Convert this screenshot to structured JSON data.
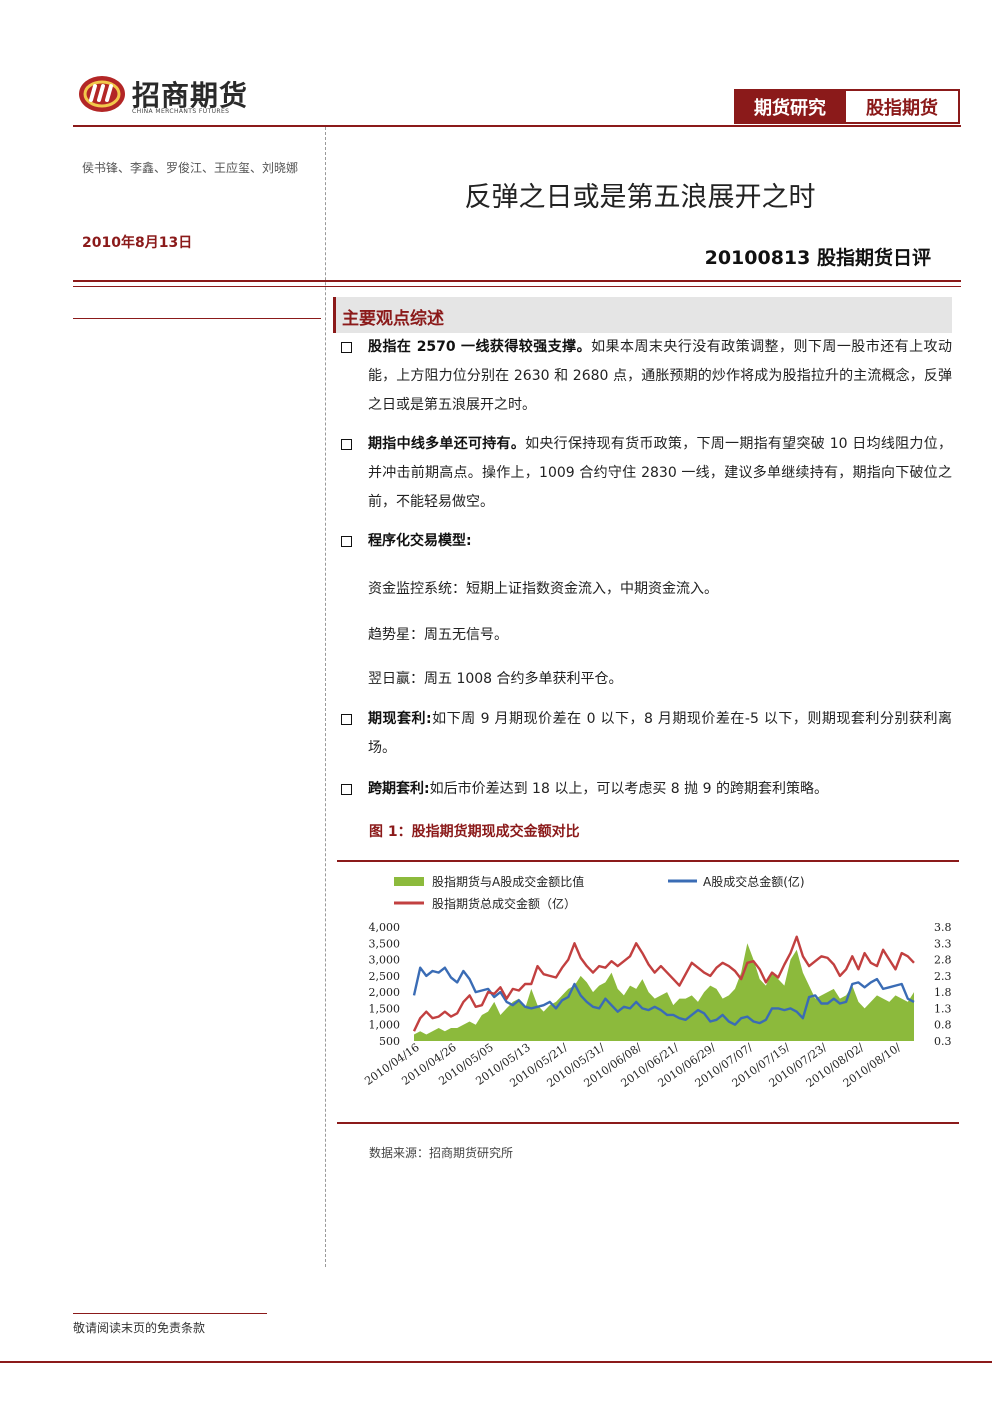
{
  "header": {
    "logo_text": "招商期货",
    "logo_en": "CHINA MERCHANTS FUTURES",
    "tag_primary": "期货研究",
    "tag_secondary": "股指期货"
  },
  "meta": {
    "authors": "侯书锋、李鑫、罗俊江、王应玺、刘晓娜",
    "date": "2010年8月13日"
  },
  "title": "反弹之日或是第五浪展开之时",
  "subtitle": "20100813 股指期货日评",
  "section_title": "主要观点综述",
  "points": [
    {
      "lead": "股指在 2570 一线获得较强支撑。",
      "text": "如果本周末央行没有政策调整，则下周一股市还有上攻动能，上方阻力位分别在 2630 和 2680 点，通胀预期的炒作将成为股指拉升的主流概念，反弹之日或是第五浪展开之时。"
    },
    {
      "lead": "期指中线多单还可持有。",
      "text": "如央行保持现有货币政策，下周一期指有望突破 10 日均线阻力位，并冲击前期高点。操作上，1009 合约守住 2830 一线，建议多单继续持有，期指向下破位之前，不能轻易做空。"
    },
    {
      "lead": "程序化交易模型:",
      "text": ""
    },
    {
      "lead": "期现套利:",
      "text": "如下周 9 月期现价差在 0 以下，8 月期现价差在-5 以下，则期现套利分别获利离场。"
    },
    {
      "lead": "跨期套利:",
      "text": "如后市价差达到 18 以上，可以考虑买 8 抛 9 的跨期套利策略。"
    }
  ],
  "models": [
    "资金监控系统：短期上证指数资金流入，中期资金流入。",
    "趋势星：周五无信号。",
    "翌日赢：周五 1008 合约多单获利平仓。"
  ],
  "figure_title": "图 1：股指期货期现成交金额对比",
  "source": "数据来源：招商期货研究所",
  "footer": "敬请阅读末页的免责条款",
  "colors": {
    "brand": "#8b1a1a",
    "ratio": "#8cba3c",
    "a_share": "#3a6cb5",
    "futures": "#c24040"
  },
  "chart_data": {
    "type": "line",
    "legend": [
      {
        "key": "ratio",
        "name": "股指期货与A股成交金额比值",
        "kind": "area"
      },
      {
        "key": "a_share",
        "name": "A股成交总金额(亿)",
        "kind": "line"
      },
      {
        "key": "futures",
        "name": "股指期货总成交金额（亿）",
        "kind": "line"
      }
    ],
    "x": [
      "2010/04/16",
      "2010/04/19",
      "2010/04/20",
      "2010/04/21",
      "2010/04/22",
      "2010/04/23",
      "2010/04/26",
      "2010/04/27",
      "2010/04/28",
      "2010/04/29",
      "2010/04/30",
      "2010/05/04",
      "2010/05/05",
      "2010/05/06",
      "2010/05/07",
      "2010/05/10",
      "2010/05/11",
      "2010/05/12",
      "2010/05/13",
      "2010/05/14",
      "2010/05/17",
      "2010/05/18",
      "2010/05/19",
      "2010/05/20",
      "2010/05/21",
      "2010/05/24",
      "2010/05/25",
      "2010/05/26",
      "2010/05/27",
      "2010/05/28",
      "2010/05/31",
      "2010/06/01",
      "2010/06/02",
      "2010/06/03",
      "2010/06/04",
      "2010/06/07",
      "2010/06/08",
      "2010/06/09",
      "2010/06/10",
      "2010/06/11",
      "2010/06/17",
      "2010/06/18",
      "2010/06/21",
      "2010/06/22",
      "2010/06/23",
      "2010/06/24",
      "2010/06/25",
      "2010/06/28",
      "2010/06/29",
      "2010/06/30",
      "2010/07/01",
      "2010/07/02",
      "2010/07/05",
      "2010/07/06",
      "2010/07/07",
      "2010/07/08",
      "2010/07/09",
      "2010/07/12",
      "2010/07/13",
      "2010/07/14",
      "2010/07/15",
      "2010/07/16",
      "2010/07/19",
      "2010/07/20",
      "2010/07/21",
      "2010/07/22",
      "2010/07/23",
      "2010/07/26",
      "2010/07/27",
      "2010/07/28",
      "2010/07/29",
      "2010/07/30",
      "2010/08/02",
      "2010/08/03",
      "2010/08/04",
      "2010/08/05",
      "2010/08/06",
      "2010/08/09",
      "2010/08/10",
      "2010/08/11",
      "2010/08/12",
      "2010/08/13"
    ],
    "x_ticks": [
      "2010/04/16",
      "2010/04/26",
      "2010/05/05",
      "2010/05/13",
      "2010/05/21/",
      "2010/05/31/",
      "2010/06/08/",
      "2010/06/21/",
      "2010/06/29/",
      "2010/07/07/",
      "2010/07/15/",
      "2010/07/23/",
      "2010/08/02/",
      "2010/08/10/"
    ],
    "x_tick_index": [
      0,
      6,
      12,
      18,
      24,
      30,
      36,
      42,
      48,
      54,
      60,
      66,
      72,
      78
    ],
    "y_left": {
      "min": 500,
      "max": 4000,
      "ticks": [
        "500",
        "1,000",
        "1,500",
        "2,000",
        "2,500",
        "3,000",
        "3,500",
        "4,000"
      ]
    },
    "y_right": {
      "min": 0.3,
      "max": 3.8,
      "ticks": [
        "0.3",
        "0.8",
        "1.3",
        "1.8",
        "2.3",
        "2.8",
        "3.3",
        "3.8"
      ]
    },
    "series": [
      {
        "key": "ratio",
        "axis": "right",
        "values": [
          0.5,
          0.6,
          0.5,
          0.6,
          0.7,
          0.6,
          0.7,
          0.7,
          0.8,
          0.9,
          0.8,
          1.1,
          1.2,
          1.5,
          1.1,
          1.3,
          1.5,
          1.6,
          1.3,
          1.9,
          1.4,
          1.2,
          1.4,
          1.5,
          1.7,
          1.9,
          2.0,
          2.3,
          2.1,
          1.8,
          2.0,
          2.1,
          2.4,
          1.9,
          1.7,
          2.0,
          1.9,
          2.2,
          1.8,
          1.6,
          1.7,
          1.8,
          1.4,
          1.6,
          1.6,
          1.7,
          1.5,
          1.8,
          2.0,
          1.9,
          1.6,
          1.7,
          1.9,
          2.4,
          3.3,
          2.8,
          2.2,
          2.0,
          2.4,
          2.2,
          2.0,
          2.8,
          3.1,
          2.4,
          2.0,
          1.6,
          1.7,
          1.8,
          1.9,
          1.6,
          1.7,
          2.0,
          1.5,
          1.3,
          1.5,
          1.7,
          1.6,
          1.5,
          1.7,
          1.6,
          1.5,
          1.8
        ]
      },
      {
        "key": "a_share",
        "axis": "left",
        "values": [
          1900,
          2750,
          2500,
          2650,
          2600,
          2750,
          2450,
          2300,
          2650,
          2400,
          2000,
          2050,
          2100,
          1850,
          2000,
          1700,
          1600,
          1750,
          1550,
          1500,
          1550,
          1600,
          1700,
          1500,
          1750,
          1850,
          2250,
          1900,
          1700,
          1550,
          1500,
          1800,
          1600,
          1400,
          1550,
          1500,
          1700,
          1500,
          1450,
          1550,
          1450,
          1300,
          1300,
          1200,
          1150,
          1300,
          1450,
          1350,
          1100,
          1150,
          1300,
          1100,
          1000,
          1200,
          1250,
          1100,
          1050,
          1150,
          1500,
          1500,
          1450,
          1500,
          1400,
          1200,
          1850,
          1900,
          1650,
          1650,
          1800,
          1650,
          1700,
          2250,
          2300,
          2150,
          2300,
          2400,
          2100,
          2150,
          2200,
          2250,
          1800,
          1700
        ]
      },
      {
        "key": "futures",
        "axis": "left",
        "values": [
          800,
          1200,
          1400,
          1200,
          1250,
          1400,
          1250,
          1350,
          1700,
          1900,
          1550,
          1600,
          2000,
          1950,
          2150,
          1800,
          2100,
          2050,
          2250,
          2250,
          2800,
          2550,
          2500,
          2450,
          2750,
          3000,
          3500,
          3050,
          2800,
          2600,
          2800,
          2750,
          2950,
          2800,
          2950,
          3100,
          3500,
          3200,
          2850,
          2600,
          2800,
          2600,
          2400,
          2200,
          2550,
          2900,
          2750,
          2600,
          2500,
          2750,
          2900,
          2800,
          2650,
          2400,
          2900,
          2950,
          2700,
          2300,
          2600,
          2450,
          2850,
          3200,
          3700,
          3100,
          2800,
          2950,
          3100,
          3050,
          2850,
          2500,
          2700,
          3100,
          2700,
          3200,
          2900,
          2800,
          3300,
          3000,
          2700,
          3200,
          3100,
          2900
        ]
      }
    ]
  }
}
